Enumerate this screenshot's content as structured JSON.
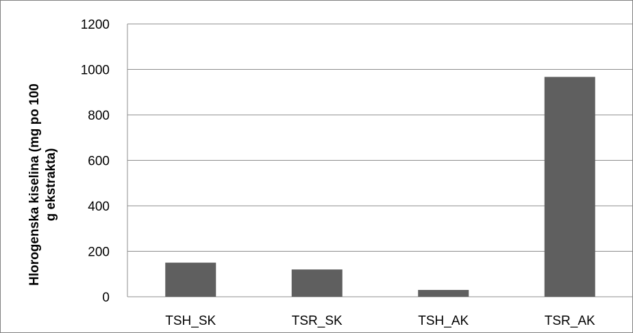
{
  "chart_data": {
    "type": "bar",
    "categories": [
      "TSH_SK",
      "TSR_SK",
      "TSH_AK",
      "TSR_AK"
    ],
    "values": [
      150,
      120,
      30,
      967
    ],
    "title": "",
    "xlabel": "",
    "ylabel_lines": [
      "Hlorogenska kiselina (mg po 100",
      "g ekstrakta)"
    ],
    "ylim": [
      0,
      1200
    ],
    "yticks": [
      "0",
      "200",
      "400",
      "600",
      "800",
      "1000",
      "1200"
    ],
    "grid": true,
    "bar_color": "#5f5f5f",
    "grid_color": "#8c8c8c"
  }
}
